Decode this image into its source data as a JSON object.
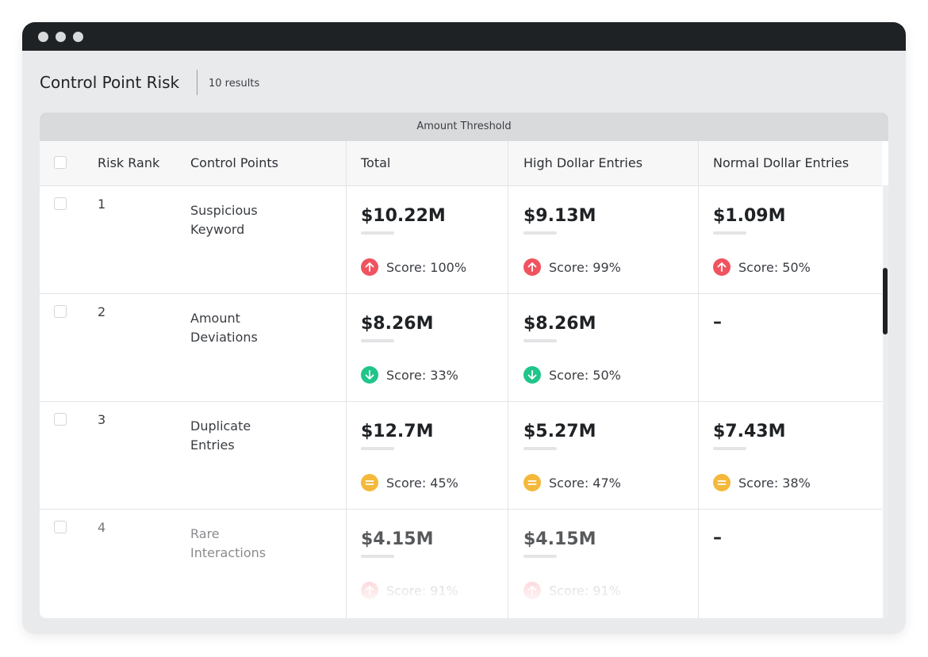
{
  "header": {
    "title": "Control Point Risk",
    "results": "10 results"
  },
  "table": {
    "group_header": "Amount Threshold",
    "columns": [
      "Risk Rank",
      "Control Points",
      "Total",
      "High Dollar Entries",
      "Normal Dollar Entries"
    ],
    "rows": [
      {
        "rank": "1",
        "name": "Suspicious Keyword",
        "cells": [
          {
            "amount": "$10.22M",
            "score": "Score: 100%",
            "trend": "up"
          },
          {
            "amount": "$9.13M",
            "score": "Score: 99%",
            "trend": "up"
          },
          {
            "amount": "$1.09M",
            "score": "Score: 50%",
            "trend": "up"
          }
        ]
      },
      {
        "rank": "2",
        "name": "Amount Deviations",
        "cells": [
          {
            "amount": "$8.26M",
            "score": "Score: 33%",
            "trend": "down"
          },
          {
            "amount": "$8.26M",
            "score": "Score: 50%",
            "trend": "down"
          },
          "–"
        ]
      },
      {
        "rank": "3",
        "name": "Duplicate Entries",
        "cells": [
          {
            "amount": "$12.7M",
            "score": "Score: 45%",
            "trend": "flat"
          },
          {
            "amount": "$5.27M",
            "score": "Score: 47%",
            "trend": "flat"
          },
          {
            "amount": "$7.43M",
            "score": "Score: 38%",
            "trend": "flat"
          }
        ]
      },
      {
        "rank": "4",
        "name": "Rare Interactions",
        "cells": [
          {
            "amount": "$4.15M",
            "score": "Score: 91%",
            "trend": "up"
          },
          {
            "amount": "$4.15M",
            "score": "Score: 91%",
            "trend": "up"
          },
          "–"
        ]
      }
    ]
  }
}
